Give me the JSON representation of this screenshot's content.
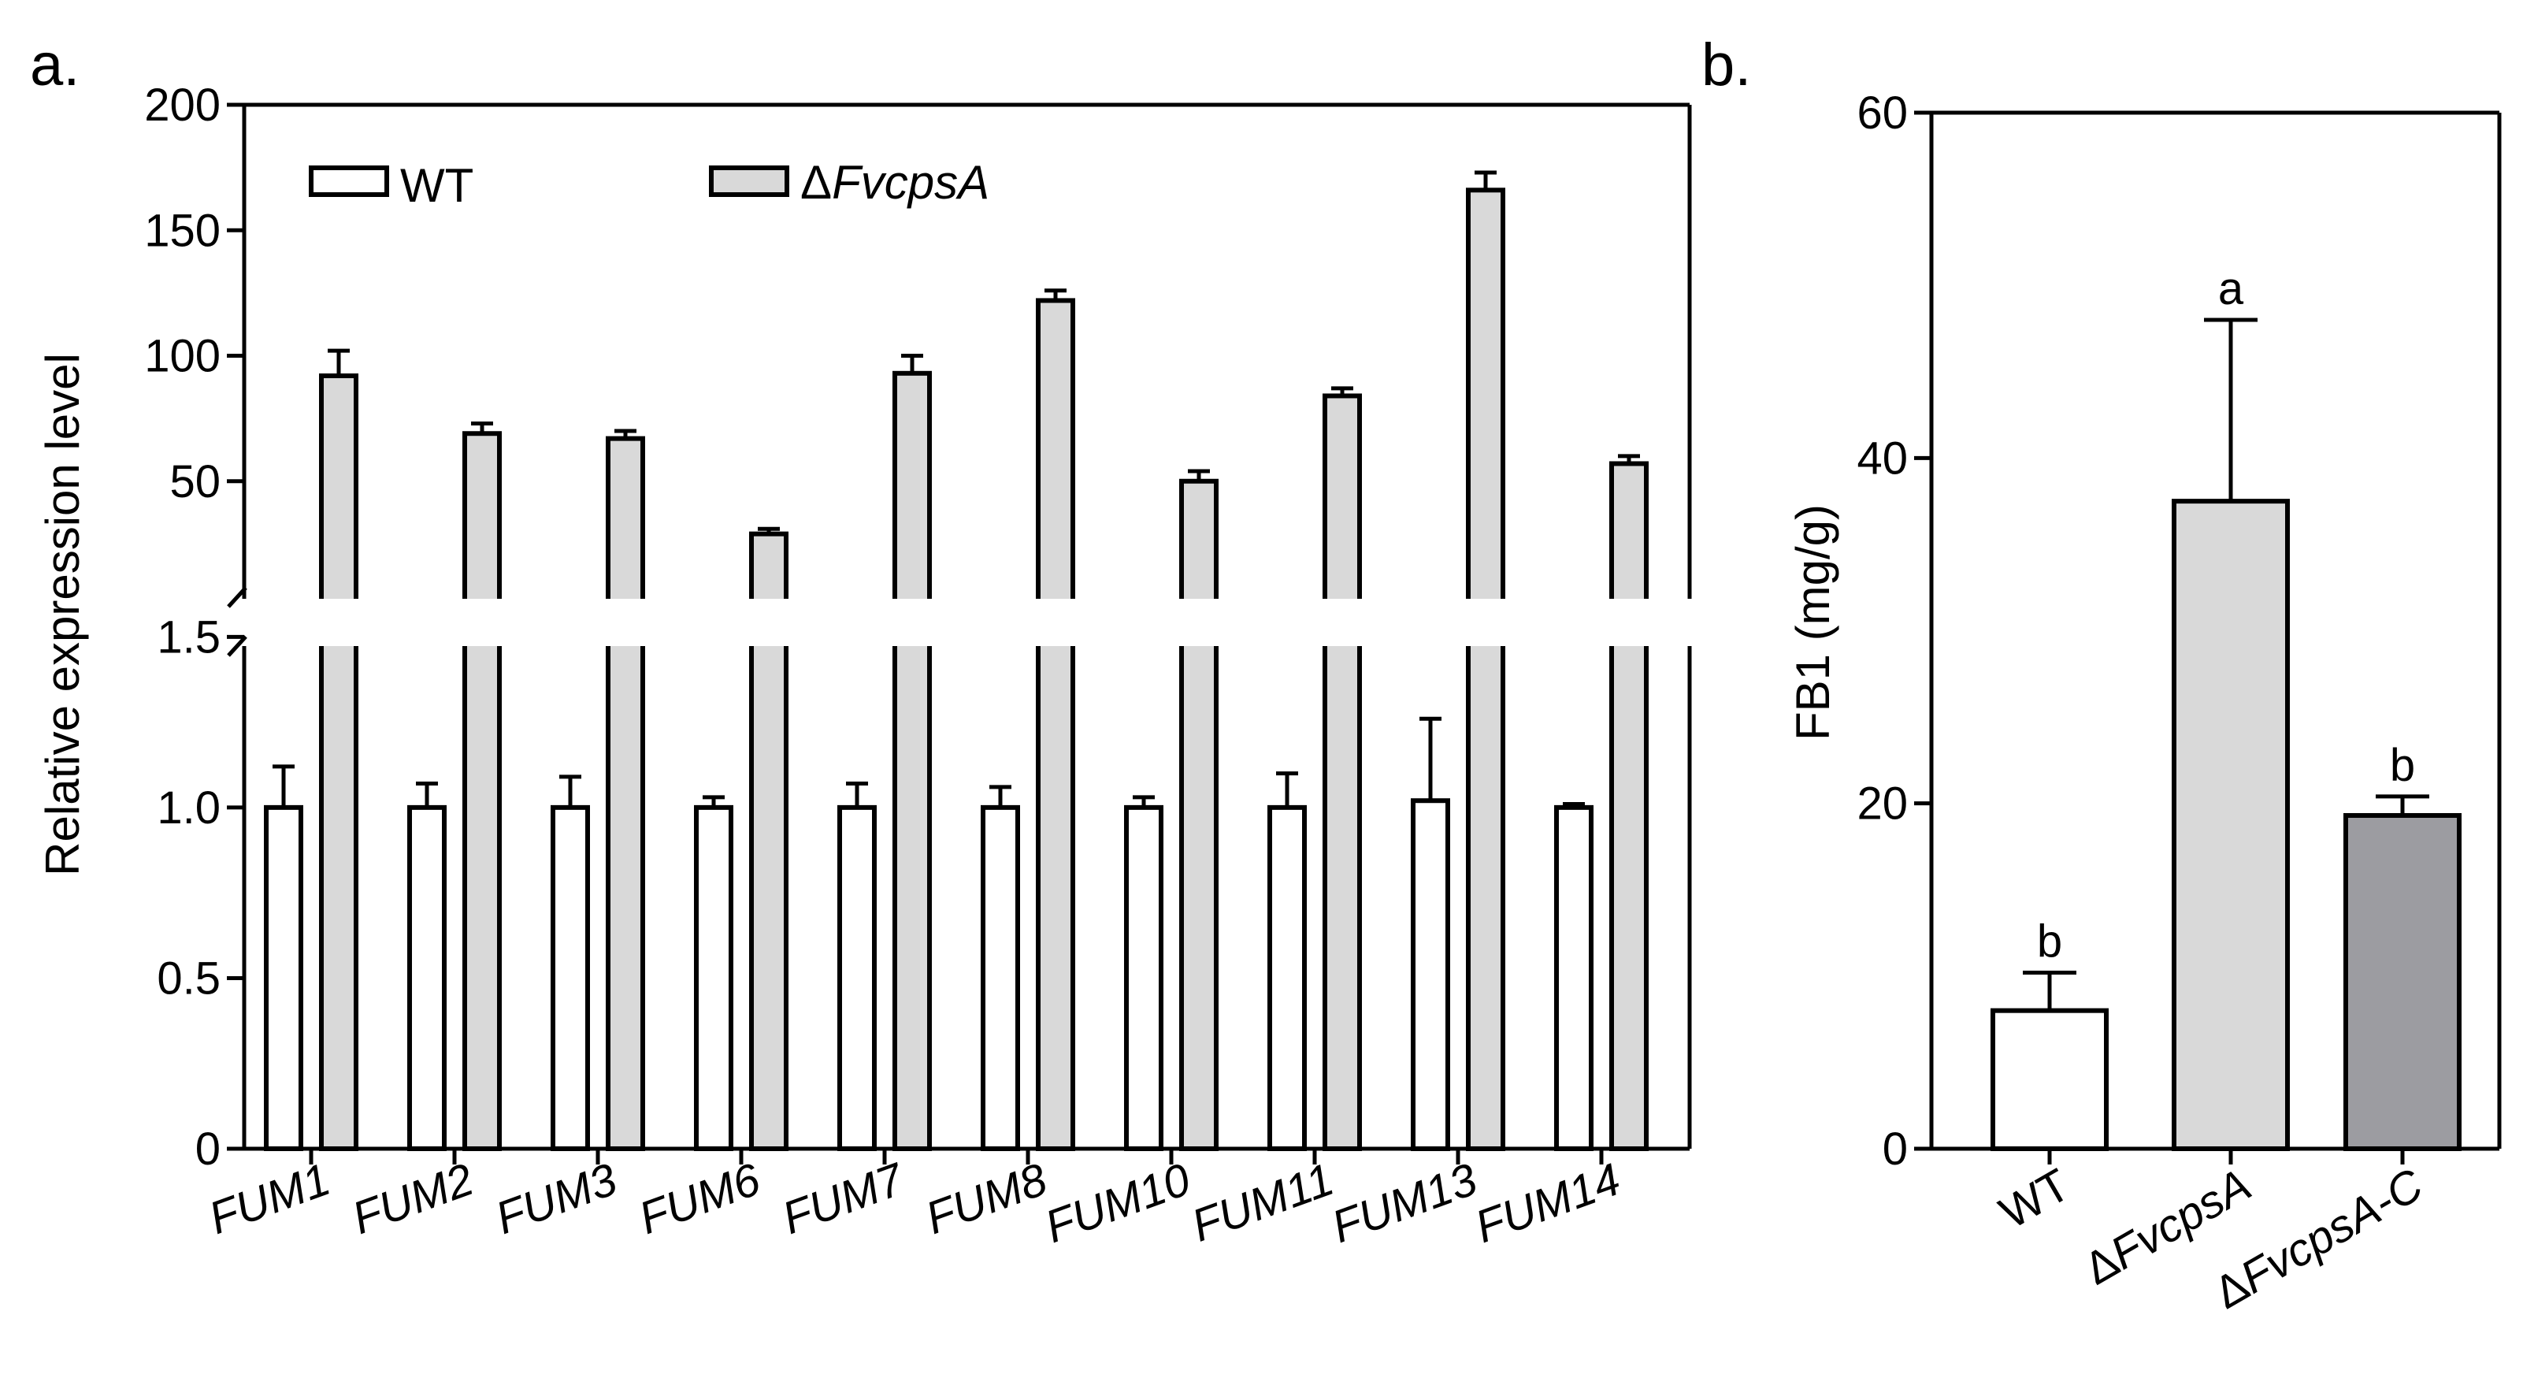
{
  "colors": {
    "wt": "#ffffff",
    "mutant": "#d9d9d9",
    "complement": "#9c9ca1",
    "stroke": "#000000"
  },
  "chart_data": [
    {
      "panel_label": "a.",
      "type": "bar",
      "ylabel": "Relative expression level",
      "categories": [
        "FUM1",
        "FUM2",
        "FUM3",
        "FUM6",
        "FUM7",
        "FUM8",
        "FUM10",
        "FUM11",
        "FUM13",
        "FUM14"
      ],
      "legend": [
        {
          "prefix": "",
          "name": "WT"
        },
        {
          "prefix": "Δ",
          "name": "FvcpsA"
        }
      ],
      "series": [
        {
          "name": "WT",
          "values": [
            1.0,
            1.0,
            1.0,
            1.0,
            1.0,
            1.0,
            1.0,
            1.0,
            1.02,
            1.0
          ],
          "errors": [
            0.12,
            0.07,
            0.09,
            0.03,
            0.07,
            0.06,
            0.03,
            0.1,
            0.24,
            0.01
          ]
        },
        {
          "name": "ΔFvcpsA",
          "values": [
            92,
            69,
            67,
            29,
            93,
            122,
            50,
            84,
            166,
            57
          ],
          "errors": [
            10,
            4,
            3,
            2,
            7,
            4,
            4,
            3,
            7,
            3
          ]
        }
      ],
      "y_axis_break": {
        "lower_range": [
          0,
          1.6
        ],
        "upper_range": [
          0,
          200
        ]
      },
      "lower_ticks": [
        "0",
        "0.5",
        "1.0",
        "1.5"
      ],
      "upper_ticks": [
        "50",
        "100",
        "150",
        "200"
      ]
    },
    {
      "panel_label": "b.",
      "type": "bar",
      "ylabel": "FB1 (mg/g)",
      "ylim": [
        0,
        60
      ],
      "ticks": [
        "0",
        "20",
        "40",
        "60"
      ],
      "categories": [
        {
          "prefix": "Δ",
          "name": "WT",
          "show_prefix": false
        },
        {
          "prefix": "Δ",
          "name": "FvcpsA",
          "show_prefix": true
        },
        {
          "prefix": "Δ",
          "name": "FvcpsA-C",
          "show_prefix": true
        }
      ],
      "values": [
        8,
        37.5,
        19.3
      ],
      "errors": [
        2.2,
        10.5,
        1.1
      ],
      "significance": [
        "b",
        "a",
        "b"
      ]
    }
  ]
}
